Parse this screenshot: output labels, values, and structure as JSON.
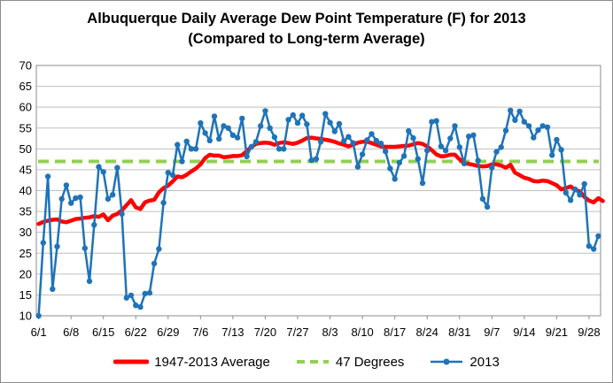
{
  "chart_data": {
    "type": "line",
    "title": "Albuquerque Daily Average Dew Point Temperature (F) for 2013",
    "subtitle": "(Compared to Long-term Average)",
    "xlabel": "",
    "ylabel": "",
    "ylim": [
      10,
      70
    ],
    "yticks": [
      "10",
      "15",
      "20",
      "25",
      "30",
      "35",
      "40",
      "45",
      "50",
      "55",
      "60",
      "65",
      "70"
    ],
    "x_start": "6/1",
    "x_end": "9/30",
    "xticks": [
      "6/1",
      "6/8",
      "6/15",
      "6/22",
      "6/29",
      "7/6",
      "7/13",
      "7/20",
      "7/27",
      "8/3",
      "8/10",
      "8/17",
      "8/24",
      "8/31",
      "9/7",
      "9/14",
      "9/21",
      "9/28"
    ],
    "grid": "horizontal",
    "legend_position": "bottom",
    "colors": {
      "average": "#ff0000",
      "reference": "#92d050",
      "year": "#1f73b8",
      "grid": "#bfbfbf",
      "frame": "#8c8c8c"
    },
    "series": [
      {
        "name": "1947-2013 Average",
        "style": "thick-solid",
        "values": [
          32,
          32.5,
          32.8,
          33,
          33.1,
          32.6,
          32.4,
          32.8,
          33.2,
          33.3,
          33.5,
          33.6,
          33.9,
          33.7,
          34.3,
          32.9,
          34,
          34.4,
          35.3,
          36.5,
          37.7,
          36,
          35.6,
          37.2,
          37.6,
          37.8,
          39.6,
          40.6,
          41.2,
          42.2,
          43.4,
          43.2,
          43.8,
          44.6,
          45.3,
          46.3,
          47.8,
          48.6,
          48.4,
          48.4,
          48,
          48.1,
          48.3,
          48.3,
          48.5,
          49.5,
          50.5,
          51.2,
          51.4,
          51.5,
          51.4,
          51,
          51.4,
          51.6,
          51.4,
          51.2,
          51.5,
          52,
          52.6,
          52.7,
          52.5,
          52.4,
          52.2,
          52,
          51.7,
          51.3,
          51,
          50.6,
          51,
          51.5,
          51.7,
          51.7,
          51.4,
          51,
          50.6,
          50.5,
          50.5,
          50.5,
          50.6,
          50.7,
          50.8,
          51.1,
          51.4,
          51.2,
          50.6,
          49.7,
          48.7,
          48.2,
          48.3,
          48.6,
          48.6,
          47.5,
          46.5,
          46.4,
          46.2,
          45.9,
          45.8,
          45.9,
          46.3,
          46.3,
          46,
          45.5,
          46.2,
          44.3,
          43.7,
          43.1,
          42.8,
          42.3,
          42.2,
          42.4,
          42.3,
          41.8,
          41.3,
          40.3,
          40.6,
          41,
          40.2,
          39.8,
          38.5,
          37.6,
          37.2,
          38.2,
          37.5
        ]
      },
      {
        "name": "47 Degrees",
        "style": "thick-dashed",
        "values": [
          47,
          47
        ]
      },
      {
        "name": "2013",
        "style": "line-with-markers",
        "values": [
          10,
          27.5,
          43.4,
          16.4,
          26.6,
          38,
          41.3,
          37,
          38.2,
          38.4,
          26.2,
          18.3,
          31.8,
          45.7,
          44.5,
          38,
          39,
          45.5,
          34.4,
          14.3,
          14.9,
          12.5,
          12.1,
          15.3,
          15.5,
          22.5,
          26,
          37.1,
          44.3,
          43.7,
          51,
          47,
          51.8,
          50,
          50,
          56.2,
          53.8,
          52,
          57.8,
          52.4,
          55.5,
          55,
          53.3,
          52.7,
          57.3,
          48.2,
          50.5,
          51.7,
          55.5,
          59.1,
          55,
          52.8,
          50,
          50,
          57,
          58.1,
          56.2,
          58,
          55.9,
          47.3,
          47.6,
          51.7,
          58.4,
          56.3,
          54.2,
          56,
          51.9,
          52.9,
          51.4,
          45.7,
          48.7,
          52.1,
          53.6,
          52,
          51.3,
          49.4,
          45.3,
          42.8,
          46.7,
          48.3,
          54.3,
          52.6,
          47.6,
          41.8,
          49.6,
          56.5,
          56.7,
          50.6,
          49.6,
          52.5,
          55.5,
          50.4,
          46.5,
          53,
          53.3,
          47.2,
          38,
          36.1,
          45.5,
          49.3,
          50.4,
          54.4,
          59.2,
          56.9,
          59,
          56.5,
          55.5,
          52.7,
          54.5,
          55.5,
          55.2,
          48.5,
          52.2,
          49.8,
          39.5,
          37.7,
          40.3,
          39,
          41.6,
          26.7,
          26,
          29.1
        ]
      }
    ]
  }
}
